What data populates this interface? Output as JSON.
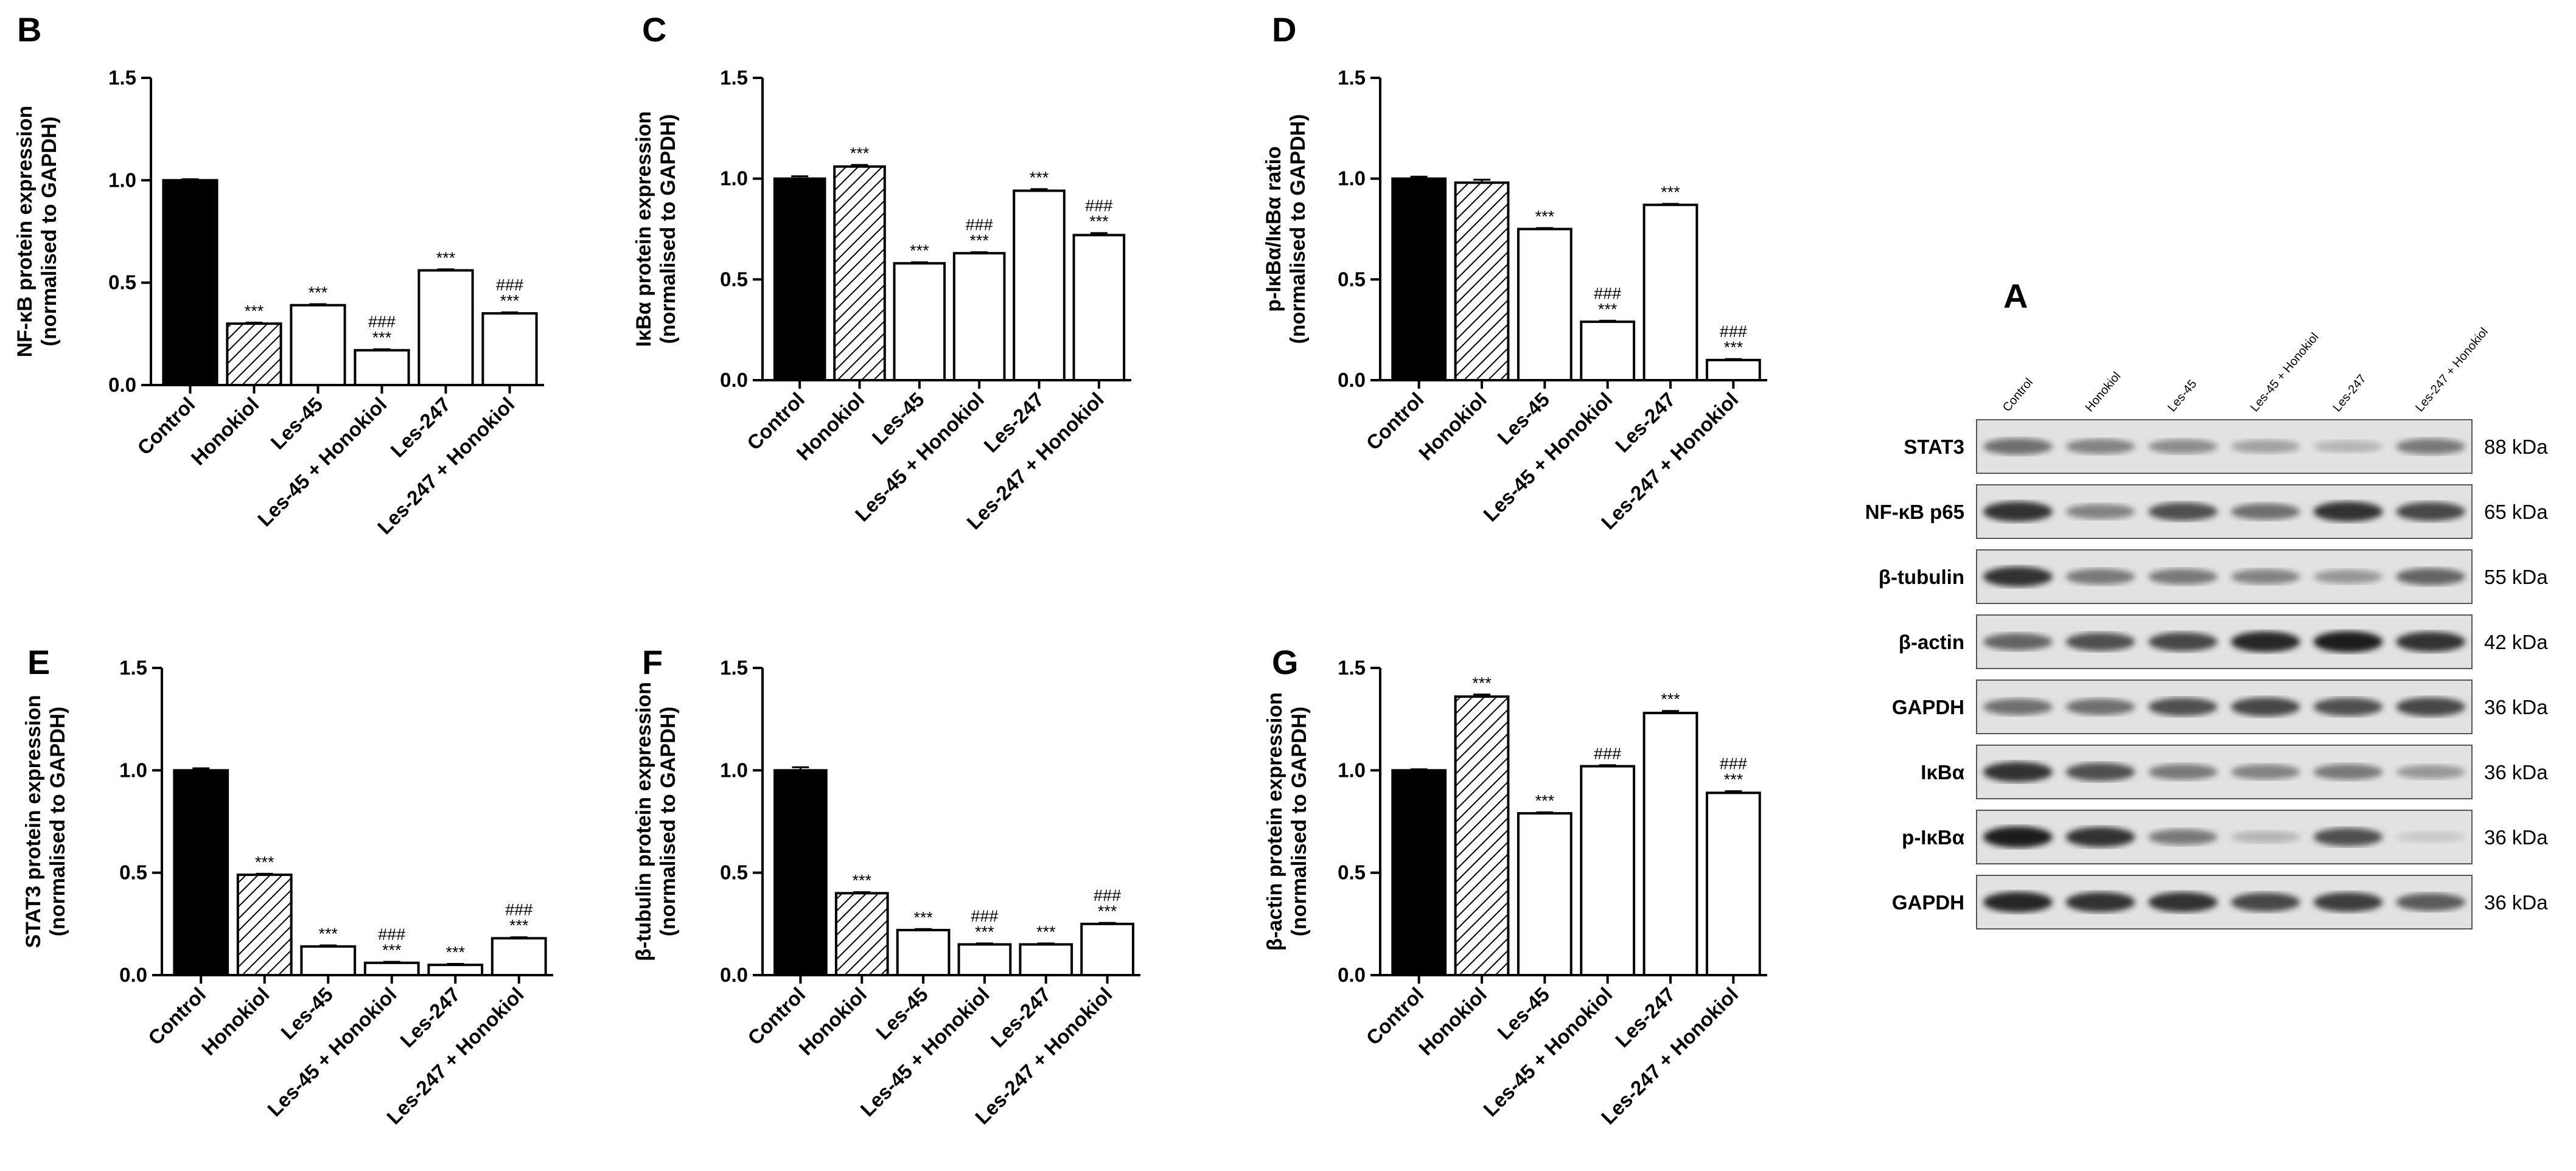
{
  "chart_data": [
    {
      "panel": "B",
      "type": "bar",
      "ylabel_line1": "NF-κB protein expression",
      "ylabel_line2": "(normalised to GAPDH)",
      "ylim": [
        0,
        1.5
      ],
      "yticks": [
        "0.0",
        "0.5",
        "1.0",
        "1.5"
      ],
      "categories": [
        "Control",
        "Honokiol",
        "Les-45",
        "Les-45 + Honokiol",
        "Les-247",
        "Les-247 + Honokiol"
      ],
      "values": [
        1.0,
        0.3,
        0.39,
        0.17,
        0.56,
        0.35
      ],
      "errors": [
        0.005,
        0.005,
        0.005,
        0.005,
        0.005,
        0.005
      ],
      "fills": [
        "black",
        "hatch",
        "white",
        "white",
        "white",
        "white"
      ],
      "significance": [
        [
          "",
          ""
        ],
        [
          "",
          "***"
        ],
        [
          "",
          "***"
        ],
        [
          "###",
          "***"
        ],
        [
          "",
          "***"
        ],
        [
          "###",
          "***"
        ]
      ]
    },
    {
      "panel": "C",
      "type": "bar",
      "ylabel_line1": "IκBα protein expression",
      "ylabel_line2": "(normalised to GAPDH)",
      "ylim": [
        0,
        1.5
      ],
      "yticks": [
        "0.0",
        "0.5",
        "1.0",
        "1.5"
      ],
      "categories": [
        "Control",
        "Honokiol",
        "Les-45",
        "Les-45 + Honokiol",
        "Les-247",
        "Les-247 + Honokiol"
      ],
      "values": [
        1.0,
        1.06,
        0.58,
        0.63,
        0.94,
        0.72
      ],
      "errors": [
        0.012,
        0.008,
        0.005,
        0.005,
        0.008,
        0.01
      ],
      "fills": [
        "black",
        "hatch",
        "white",
        "white",
        "white",
        "white"
      ],
      "significance": [
        [
          "",
          ""
        ],
        [
          "",
          "***"
        ],
        [
          "",
          "***"
        ],
        [
          "###",
          "***"
        ],
        [
          "",
          "***"
        ],
        [
          "###",
          "***"
        ]
      ]
    },
    {
      "panel": "D",
      "type": "bar",
      "ylabel_line1": "p-IκBα/IκBα ratio",
      "ylabel_line2": "(normalised to GAPDH)",
      "ylim": [
        0,
        1.5
      ],
      "yticks": [
        "0.0",
        "0.5",
        "1.0",
        "1.5"
      ],
      "categories": [
        "Control",
        "Honokiol",
        "Les-45",
        "Les-45 + Honokiol",
        "Les-247",
        "Les-247 + Honokiol"
      ],
      "values": [
        1.0,
        0.98,
        0.75,
        0.29,
        0.87,
        0.1
      ],
      "errors": [
        0.01,
        0.015,
        0.005,
        0.005,
        0.005,
        0.005
      ],
      "fills": [
        "black",
        "hatch",
        "white",
        "white",
        "white",
        "white"
      ],
      "significance": [
        [
          "",
          ""
        ],
        [
          "",
          ""
        ],
        [
          "",
          "***"
        ],
        [
          "###",
          "***"
        ],
        [
          "",
          "***"
        ],
        [
          "###",
          "***"
        ]
      ]
    },
    {
      "panel": "E",
      "type": "bar",
      "ylabel_line1": "STAT3 protein expression",
      "ylabel_line2": "(normalised to GAPDH)",
      "ylim": [
        0,
        1.5
      ],
      "yticks": [
        "0.0",
        "0.5",
        "1.0",
        "1.5"
      ],
      "categories": [
        "Control",
        "Honokiol",
        "Les-45",
        "Les-45 + Honokiol",
        "Les-247",
        "Les-247 + Honokiol"
      ],
      "values": [
        1.0,
        0.49,
        0.14,
        0.06,
        0.05,
        0.18
      ],
      "errors": [
        0.01,
        0.005,
        0.005,
        0.005,
        0.005,
        0.005
      ],
      "fills": [
        "black",
        "hatch",
        "white",
        "white",
        "white",
        "white"
      ],
      "significance": [
        [
          "",
          ""
        ],
        [
          "",
          "***"
        ],
        [
          "",
          "***"
        ],
        [
          "###",
          "***"
        ],
        [
          "",
          "***"
        ],
        [
          "###",
          "***"
        ]
      ]
    },
    {
      "panel": "F",
      "type": "bar",
      "ylabel_line1": "β-tubulin protein expression",
      "ylabel_line2": "(normalised to GAPDH)",
      "ylim": [
        0,
        1.5
      ],
      "yticks": [
        "0.0",
        "0.5",
        "1.0",
        "1.5"
      ],
      "categories": [
        "Control",
        "Honokiol",
        "Les-45",
        "Les-45 + Honokiol",
        "Les-247",
        "Les-247 + Honokiol"
      ],
      "values": [
        1.0,
        0.4,
        0.22,
        0.15,
        0.15,
        0.25
      ],
      "errors": [
        0.015,
        0.005,
        0.005,
        0.005,
        0.005,
        0.005
      ],
      "fills": [
        "black",
        "hatch",
        "white",
        "white",
        "white",
        "white"
      ],
      "significance": [
        [
          "",
          ""
        ],
        [
          "",
          "***"
        ],
        [
          "",
          "***"
        ],
        [
          "###",
          "***"
        ],
        [
          "",
          "***"
        ],
        [
          "###",
          "***"
        ]
      ]
    },
    {
      "panel": "G",
      "type": "bar",
      "ylabel_line1": "β-actin protein expression",
      "ylabel_line2": "(normalised to GAPDH)",
      "ylim": [
        0,
        1.5
      ],
      "yticks": [
        "0.0",
        "0.5",
        "1.0",
        "1.5"
      ],
      "categories": [
        "Control",
        "Honokiol",
        "Les-45",
        "Les-45 + Honokiol",
        "Les-247",
        "Les-247 + Honokiol"
      ],
      "values": [
        1.0,
        1.36,
        0.79,
        1.02,
        1.28,
        0.89
      ],
      "errors": [
        0.005,
        0.01,
        0.005,
        0.005,
        0.01,
        0.008
      ],
      "fills": [
        "black",
        "hatch",
        "white",
        "white",
        "white",
        "white"
      ],
      "significance": [
        [
          "",
          ""
        ],
        [
          "",
          "***"
        ],
        [
          "",
          "***"
        ],
        [
          "###",
          ""
        ],
        [
          "",
          "***"
        ],
        [
          "###",
          "***"
        ]
      ]
    }
  ],
  "blot": {
    "panel": "A",
    "lanes": [
      "Control",
      "Honokiol",
      "Les-45",
      "Les-45 + Honokiol",
      "Les-247",
      "Les-247 + Honokiol"
    ],
    "rows": [
      {
        "label": "STAT3",
        "kda": "88 kDa",
        "intensity": [
          0.55,
          0.45,
          0.4,
          0.3,
          0.2,
          0.5
        ]
      },
      {
        "label": "NF-κB p65",
        "kda": "65 kDa",
        "intensity": [
          0.85,
          0.45,
          0.7,
          0.55,
          0.85,
          0.75
        ]
      },
      {
        "label": "β-tubulin",
        "kda": "55 kDa",
        "intensity": [
          0.85,
          0.5,
          0.5,
          0.45,
          0.35,
          0.6
        ]
      },
      {
        "label": "β-actin",
        "kda": "42 kDa",
        "intensity": [
          0.6,
          0.7,
          0.75,
          0.9,
          0.95,
          0.85
        ]
      },
      {
        "label": "GAPDH",
        "kda": "36 kDa",
        "intensity": [
          0.55,
          0.55,
          0.7,
          0.75,
          0.7,
          0.75
        ]
      },
      {
        "label": "IκBα",
        "kda": "36 kDa",
        "intensity": [
          0.85,
          0.7,
          0.5,
          0.45,
          0.5,
          0.35
        ]
      },
      {
        "label": "p-IκBα",
        "kda": "36 kDa",
        "intensity": [
          0.95,
          0.85,
          0.5,
          0.2,
          0.7,
          0.1
        ]
      },
      {
        "label": "GAPDH",
        "kda": "36 kDa",
        "intensity": [
          0.9,
          0.85,
          0.85,
          0.75,
          0.8,
          0.65
        ]
      }
    ]
  }
}
